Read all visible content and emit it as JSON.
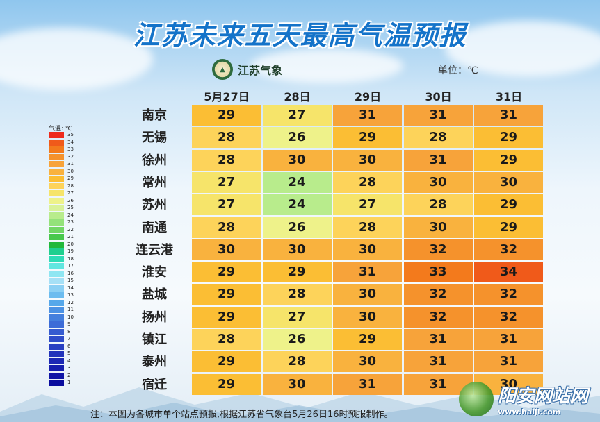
{
  "title": "江苏未来五天最高气温预报",
  "logo_text": "江苏气象",
  "unit_label": "单位：℃",
  "footnote": "注：本图为各城市单个站点预报,根据江苏省气象台5月26日16时预报制作。",
  "watermark": {
    "name": "阳安网站网",
    "url": "www.haiji.com"
  },
  "chart_data": {
    "type": "heatmap",
    "title": "江苏未来五天最高气温预报",
    "columns": [
      "5月27日",
      "28日",
      "29日",
      "30日",
      "31日"
    ],
    "rows": [
      "南京",
      "无锡",
      "徐州",
      "常州",
      "苏州",
      "南通",
      "连云港",
      "淮安",
      "盐城",
      "扬州",
      "镇江",
      "泰州",
      "宿迁"
    ],
    "values": [
      [
        29,
        27,
        31,
        31,
        31
      ],
      [
        28,
        26,
        29,
        28,
        29
      ],
      [
        28,
        30,
        30,
        31,
        29
      ],
      [
        27,
        24,
        28,
        30,
        30
      ],
      [
        27,
        24,
        27,
        28,
        29
      ],
      [
        28,
        26,
        28,
        30,
        29
      ],
      [
        30,
        30,
        30,
        32,
        32
      ],
      [
        29,
        29,
        31,
        33,
        34
      ],
      [
        29,
        28,
        30,
        32,
        32
      ],
      [
        29,
        27,
        30,
        32,
        32
      ],
      [
        28,
        26,
        29,
        31,
        31
      ],
      [
        29,
        28,
        30,
        31,
        31
      ],
      [
        29,
        30,
        31,
        31,
        30
      ]
    ],
    "unit": "℃",
    "legend": {
      "title": "气温: ℃",
      "levels": [
        35,
        34,
        33,
        32,
        31,
        30,
        29,
        28,
        27,
        26,
        25,
        24,
        23,
        22,
        21,
        20,
        19,
        18,
        17,
        16,
        15,
        14,
        13,
        12,
        11,
        10,
        9,
        8,
        7,
        6,
        5,
        4,
        3,
        2,
        1
      ],
      "colors": {
        "35": "#ee2a1c",
        "34": "#f05a1a",
        "33": "#f37a1c",
        "32": "#f5922c",
        "31": "#f7a33a",
        "30": "#f9b23e",
        "29": "#fbbe34",
        "28": "#fdd35a",
        "27": "#f6e46a",
        "26": "#eef28a",
        "25": "#d9f29a",
        "24": "#b8ec8c",
        "23": "#94e27a",
        "22": "#72d665",
        "21": "#48c84c",
        "20": "#22b83a",
        "19": "#1fcf8e",
        "18": "#2fdcb6",
        "17": "#62e6e0",
        "16": "#8fe6f2",
        "15": "#a6e0f6",
        "14": "#8cd0f4",
        "13": "#6cbcef",
        "12": "#56a8ea",
        "11": "#4c92e4",
        "10": "#447fdd",
        "9": "#3c6cd7",
        "8": "#355bd0",
        "7": "#2e4cc9",
        "6": "#283fc2",
        "5": "#2233bb",
        "4": "#1c28b4",
        "3": "#161ead",
        "2": "#1015a6",
        "1": "#0a0c9e"
      }
    }
  }
}
